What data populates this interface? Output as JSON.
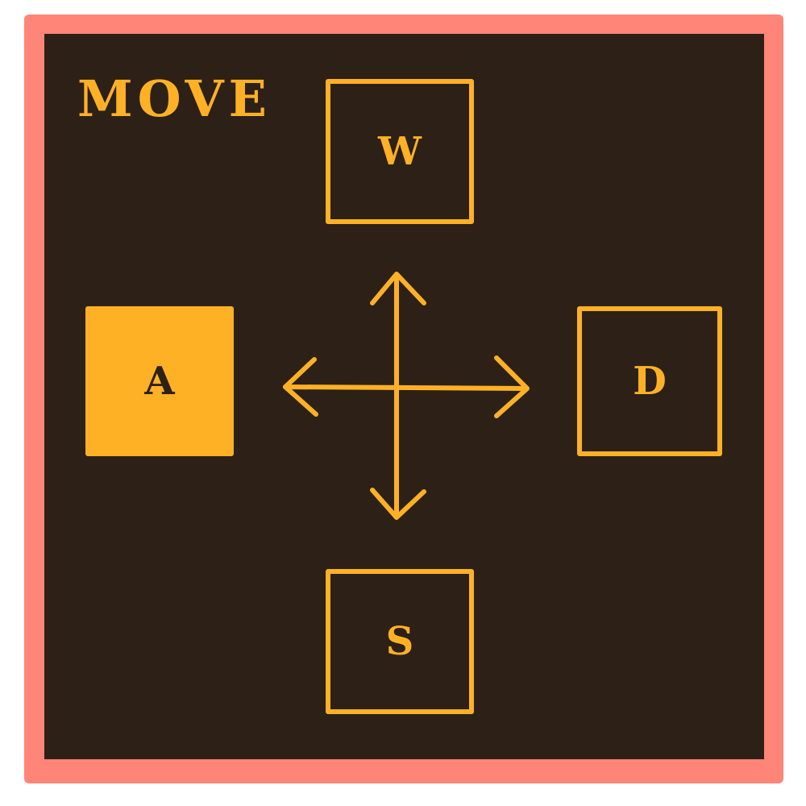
{
  "title": "MOVE",
  "keys": {
    "up": {
      "label": "W",
      "pressed": false
    },
    "left": {
      "label": "A",
      "pressed": true
    },
    "right": {
      "label": "D",
      "pressed": false
    },
    "down": {
      "label": "S",
      "pressed": false
    }
  },
  "center_icon": "four-way-arrows-icon",
  "colors": {
    "frame": "#ff8578",
    "background": "#2d2017",
    "accent": "#ffb126"
  }
}
